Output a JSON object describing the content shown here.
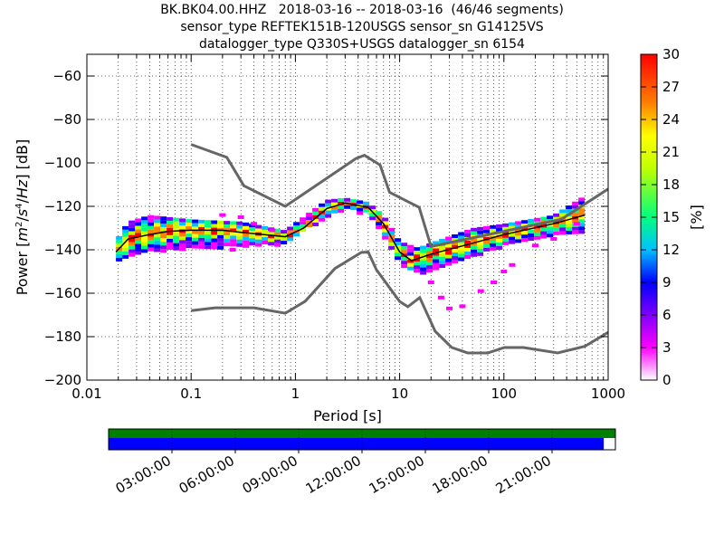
{
  "chart_data": {
    "type": "heatmap",
    "title_lines": [
      "BK.BK04.00.HHZ   2018-03-16 -- 2018-03-16  (46/46 segments)",
      "sensor_type REFTEK151B-120USGS sensor_sn G14125VS",
      "datalogger_type Q330S+USGS datalogger_sn 6154"
    ],
    "xlabel": "Period [s]",
    "ylabel": "Power [m²/s⁴/Hz] [dB]",
    "xscale": "log",
    "xlim": [
      0.01,
      1000
    ],
    "ylim": [
      -200,
      -50
    ],
    "xticks": [
      0.01,
      0.1,
      1,
      10,
      100,
      1000
    ],
    "xtick_labels": [
      "0.01",
      "0.1",
      "1",
      "10",
      "100",
      "1000"
    ],
    "yticks": [
      -200,
      -180,
      -160,
      -140,
      -120,
      -100,
      -80,
      -60
    ],
    "ytick_labels": [
      "−200",
      "−180",
      "−160",
      "−140",
      "−120",
      "−100",
      "−80",
      "−60"
    ],
    "colorbar": {
      "label": "[%]",
      "range": [
        0,
        30
      ],
      "ticks": [
        0,
        3,
        6,
        9,
        12,
        15,
        18,
        21,
        24,
        27,
        30
      ],
      "colors": [
        "#ffffff",
        "#ff00ff",
        "#8000ff",
        "#0000ff",
        "#00c0ff",
        "#00ff80",
        "#c0ff00",
        "#ffff00",
        "#ff8000",
        "#ff0000"
      ]
    },
    "noise_model_high": [
      [
        0.1,
        -91.5
      ],
      [
        0.22,
        -97.4
      ],
      [
        0.32,
        -110.5
      ],
      [
        0.8,
        -120
      ],
      [
        3.8,
        -98
      ],
      [
        4.6,
        -96.5
      ],
      [
        6.5,
        -101
      ],
      [
        8,
        -113.5
      ],
      [
        15.4,
        -120.5
      ],
      [
        20,
        -138.5
      ],
      [
        354.8,
        -126
      ],
      [
        1000,
        -112
      ]
    ],
    "noise_model_low": [
      [
        0.1,
        -168
      ],
      [
        0.17,
        -166.7
      ],
      [
        0.4,
        -166.7
      ],
      [
        0.8,
        -169.2
      ],
      [
        1.24,
        -163.7
      ],
      [
        2.4,
        -148.6
      ],
      [
        4.3,
        -141.2
      ],
      [
        5,
        -141.1
      ],
      [
        6,
        -149.2
      ],
      [
        10,
        -163.8
      ],
      [
        12,
        -166.2
      ],
      [
        15.6,
        -162
      ],
      [
        21.9,
        -177.5
      ],
      [
        31.6,
        -185
      ],
      [
        45,
        -187.5
      ],
      [
        70,
        -187.5
      ],
      [
        101,
        -185
      ],
      [
        154,
        -185
      ],
      [
        328,
        -187.5
      ],
      [
        600,
        -184.4
      ],
      [
        1000,
        -178
      ]
    ],
    "mode_curve": [
      [
        0.019,
        -141
      ],
      [
        0.025,
        -135
      ],
      [
        0.04,
        -133
      ],
      [
        0.06,
        -131.5
      ],
      [
        0.1,
        -131
      ],
      [
        0.2,
        -131
      ],
      [
        0.3,
        -132
      ],
      [
        0.5,
        -133
      ],
      [
        0.8,
        -134
      ],
      [
        1.2,
        -130
      ],
      [
        2,
        -121
      ],
      [
        3,
        -118.5
      ],
      [
        5,
        -120.5
      ],
      [
        7,
        -128
      ],
      [
        10,
        -141
      ],
      [
        13,
        -145
      ],
      [
        20,
        -142
      ],
      [
        50,
        -137
      ],
      [
        100,
        -133
      ],
      [
        300,
        -128
      ],
      [
        600,
        -124
      ]
    ],
    "spread_upper": [
      [
        0.019,
        -136
      ],
      [
        0.025,
        -127
      ],
      [
        0.04,
        -124
      ],
      [
        0.1,
        -126
      ],
      [
        0.3,
        -127
      ],
      [
        0.8,
        -131
      ],
      [
        2,
        -117
      ],
      [
        3,
        -116
      ],
      [
        5,
        -118
      ],
      [
        7,
        -124
      ],
      [
        10,
        -136
      ],
      [
        15,
        -139
      ],
      [
        50,
        -130
      ],
      [
        100,
        -128
      ],
      [
        300,
        -124
      ],
      [
        600,
        -115
      ]
    ],
    "spread_lower": [
      [
        0.019,
        -146
      ],
      [
        0.025,
        -143
      ],
      [
        0.04,
        -140
      ],
      [
        0.1,
        -139
      ],
      [
        0.3,
        -138
      ],
      [
        0.8,
        -137
      ],
      [
        2,
        -124
      ],
      [
        3,
        -121
      ],
      [
        5,
        -123
      ],
      [
        7,
        -133
      ],
      [
        10,
        -146
      ],
      [
        15,
        -150
      ],
      [
        20,
        -150
      ],
      [
        50,
        -143
      ],
      [
        100,
        -138
      ],
      [
        300,
        -133
      ],
      [
        600,
        -131
      ]
    ],
    "outliers": [
      [
        0.2,
        -124
      ],
      [
        0.3,
        -125
      ],
      [
        0.4,
        -128
      ],
      [
        0.6,
        -131
      ],
      [
        0.25,
        -140
      ],
      [
        20,
        -155
      ],
      [
        25,
        -162
      ],
      [
        30,
        -167
      ],
      [
        40,
        -166
      ],
      [
        60,
        -159
      ],
      [
        80,
        -155
      ],
      [
        100,
        -150
      ],
      [
        120,
        -147
      ],
      [
        200,
        -138
      ],
      [
        300,
        -135
      ],
      [
        500,
        -128
      ]
    ]
  },
  "availability": {
    "time_labels": [
      "03:00:00",
      "06:00:00",
      "09:00:00",
      "12:00:00",
      "15:00:00",
      "18:00:00",
      "21:00:00"
    ],
    "day_range_hours": [
      0,
      24
    ],
    "label_hours": [
      3,
      6,
      9,
      12,
      15,
      18,
      21
    ],
    "segment_coverage_fraction": 1.0,
    "data_coverage_fraction": 0.977,
    "segment_color": "#008000",
    "data_color": "#0000ff"
  }
}
